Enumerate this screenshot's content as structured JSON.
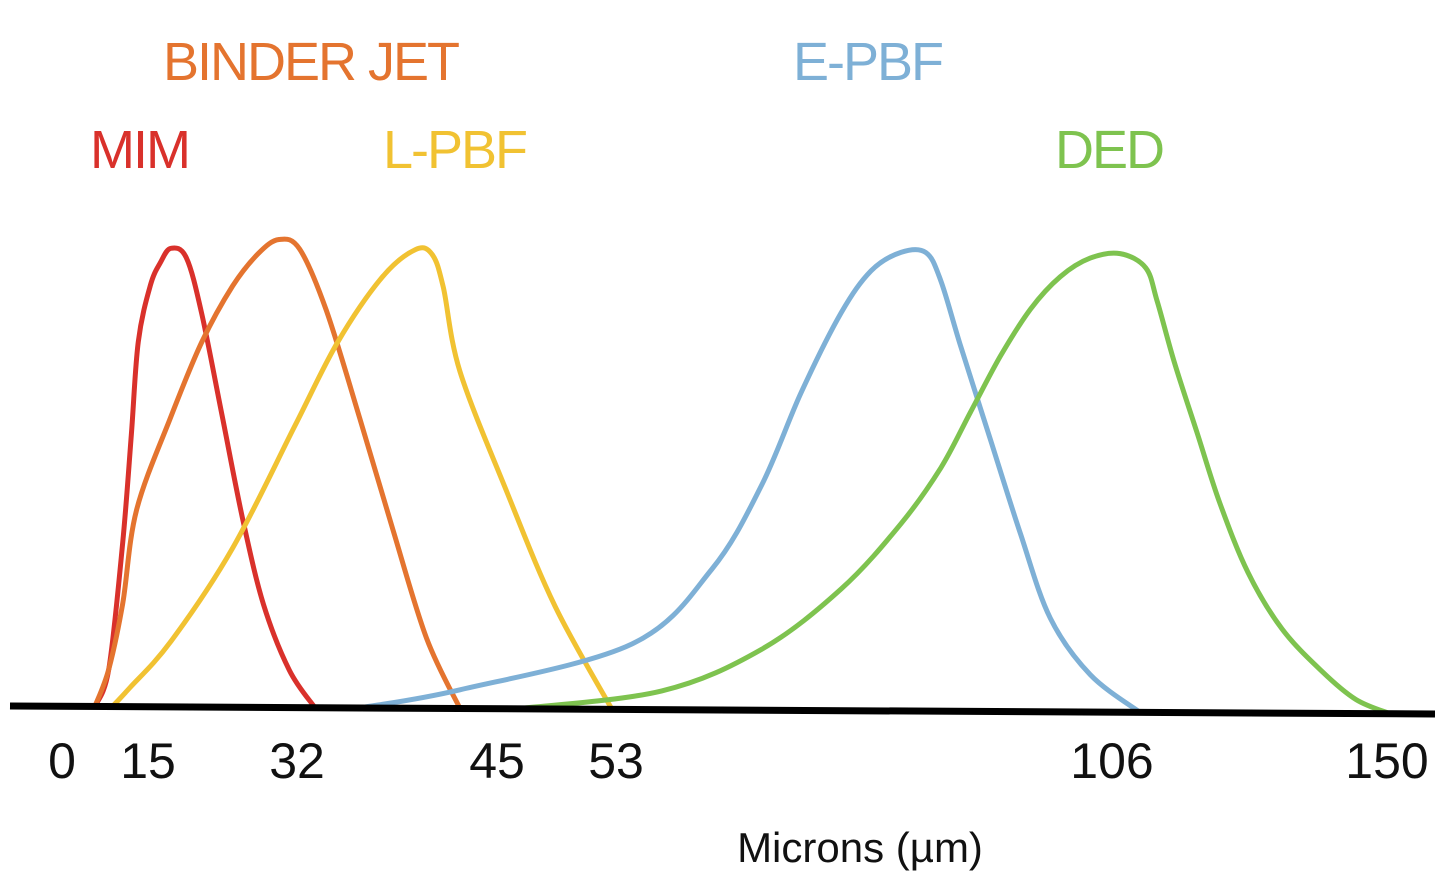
{
  "chart_data": {
    "type": "line",
    "title": "",
    "xlabel": "Microns (µm)",
    "ylabel": "",
    "xlim": [
      0,
      150
    ],
    "ylim": [
      0,
      1
    ],
    "grid": false,
    "legend": "none",
    "tick_labels": [
      "0",
      "15",
      "32",
      "45",
      "53",
      "106",
      "150"
    ],
    "series": [
      {
        "name": "MIM",
        "color": "#d9312b",
        "x": [
          2,
          6,
          10,
          12.5,
          14.5,
          16,
          17,
          18,
          19.5,
          21,
          23,
          25,
          27,
          29.5,
          32
        ],
        "y": [
          0,
          0.08,
          0.35,
          0.58,
          0.78,
          0.9,
          0.95,
          0.98,
          0.96,
          0.84,
          0.62,
          0.4,
          0.22,
          0.08,
          0
        ]
      },
      {
        "name": "BINDER JET",
        "color": "#e4742f",
        "x": [
          2,
          6,
          10,
          14,
          18,
          21,
          24,
          26.5,
          28.5,
          30.5,
          33,
          36,
          39,
          42,
          45
        ],
        "y": [
          0,
          0.08,
          0.22,
          0.42,
          0.62,
          0.78,
          0.9,
          0.97,
          1.0,
          0.98,
          0.85,
          0.62,
          0.38,
          0.15,
          0
        ]
      },
      {
        "name": "L-PBF",
        "color": "#f1c232",
        "x": [
          7,
          12,
          18,
          24,
          30,
          34,
          38,
          41,
          42.5,
          43.5,
          45,
          47.5,
          50,
          53
        ],
        "y": [
          0,
          0.04,
          0.14,
          0.34,
          0.6,
          0.78,
          0.92,
          0.98,
          0.97,
          0.9,
          0.72,
          0.46,
          0.22,
          0
        ]
      },
      {
        "name": "E-PBF",
        "color": "#7eb0d6",
        "x": [
          36,
          45,
          55,
          63,
          68,
          72,
          76,
          79,
          82,
          84.5,
          86,
          88,
          91,
          94,
          97,
          101,
          106
        ],
        "y": [
          0,
          0.04,
          0.14,
          0.3,
          0.48,
          0.68,
          0.85,
          0.94,
          0.98,
          0.98,
          0.92,
          0.78,
          0.58,
          0.38,
          0.2,
          0.08,
          0
        ]
      },
      {
        "name": "DED",
        "color": "#7ec34f",
        "x": [
          48,
          58,
          68,
          76,
          82,
          86,
          89,
          92,
          95,
          98,
          101,
          104,
          107,
          109,
          112,
          116,
          120,
          125,
          131,
          138,
          144,
          150
        ],
        "y": [
          0,
          0.04,
          0.13,
          0.26,
          0.4,
          0.52,
          0.64,
          0.76,
          0.86,
          0.93,
          0.97,
          0.98,
          0.95,
          0.88,
          0.75,
          0.6,
          0.45,
          0.3,
          0.18,
          0.09,
          0.03,
          0
        ]
      }
    ]
  }
}
